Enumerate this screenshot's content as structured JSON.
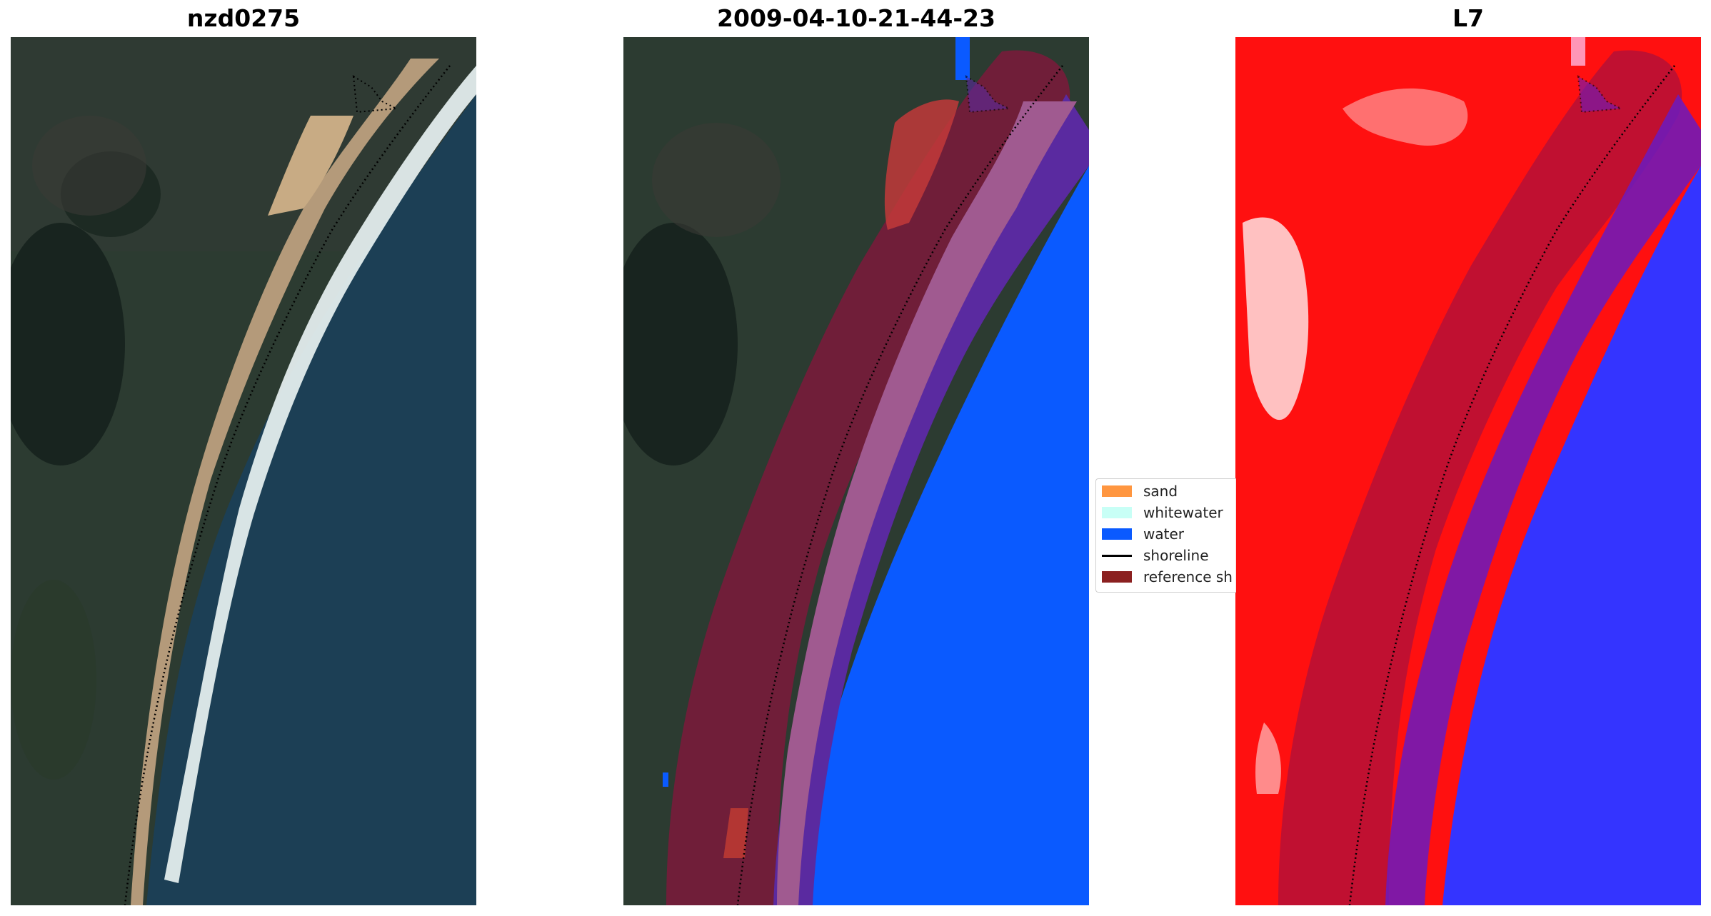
{
  "panels": [
    {
      "title": "nzd0275",
      "kind": "rgb-satellite"
    },
    {
      "title": "2009-04-10-21-44-23",
      "kind": "classified-overlay"
    },
    {
      "title": "L7",
      "kind": "index-map"
    }
  ],
  "legend": {
    "items": [
      {
        "label": "sand",
        "color": "#ff9640"
      },
      {
        "label": "whitewater",
        "color": "#c8fff6"
      },
      {
        "label": "water",
        "color": "#0a5aff"
      },
      {
        "label": "shoreline",
        "color": "#000000"
      },
      {
        "label": "reference sh",
        "color": "#8b2020"
      }
    ]
  },
  "colors": {
    "land_dark": "#1f2e26",
    "sea": "#1c3f55",
    "sand": "#b49a7a",
    "surf": "#e8f2f2",
    "buffer": "#8b1a3a",
    "index_red": "#ff1010",
    "index_blue": "#3434ff"
  }
}
